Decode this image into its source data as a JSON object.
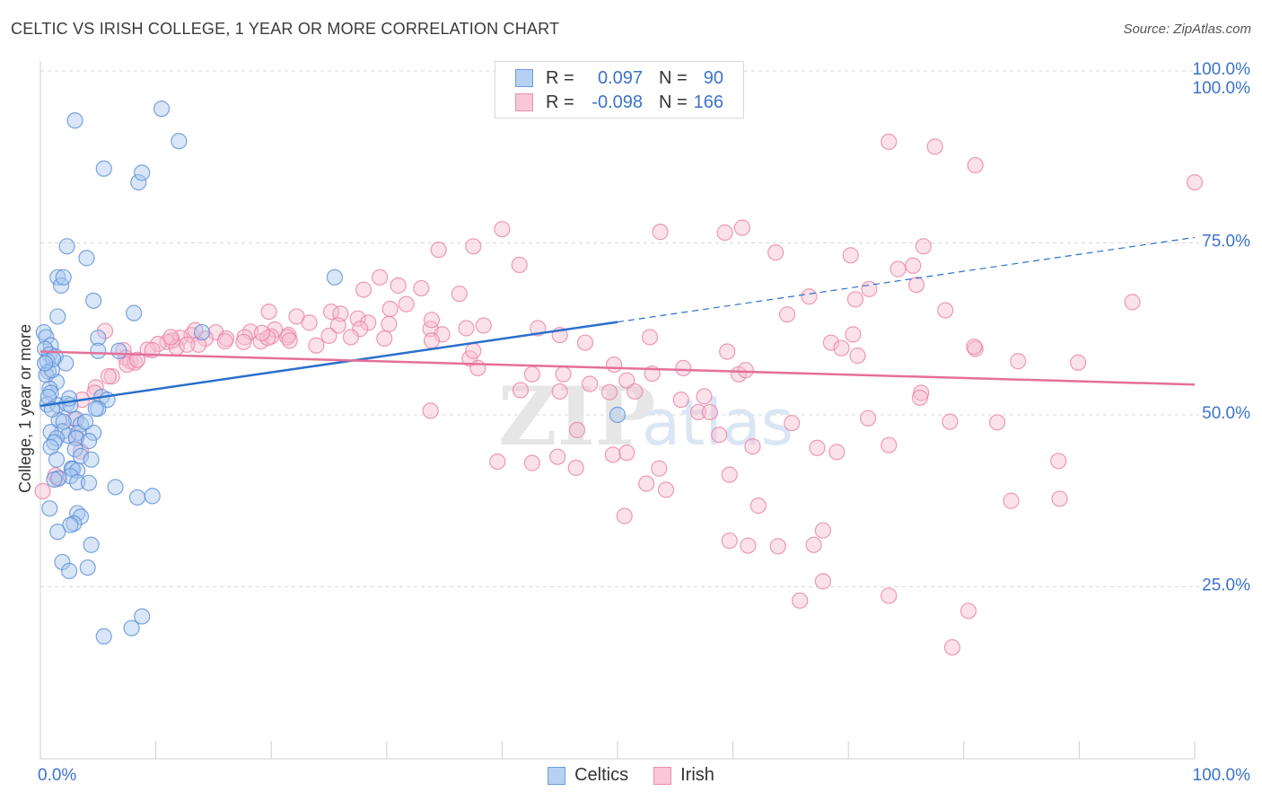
{
  "title": "CELTIC VS IRISH COLLEGE, 1 YEAR OR MORE CORRELATION CHART",
  "source": "Source: ZipAtlas.com",
  "watermark": "ZIPatlas",
  "colors": {
    "celtics_fill": "#a9c8f0",
    "celtics_stroke": "#5b8fd6",
    "celtics_line": "#2a6fcb",
    "irish_fill": "#f7bcd0",
    "irish_stroke": "#e882a6",
    "irish_line": "#e4709a",
    "axis_label": "#3b73c8",
    "grid": "#d9d9d9"
  },
  "legend": {
    "rows": [
      {
        "series": "Celtics",
        "r_label": "R =",
        "r_value": "0.097",
        "n_label": "N =",
        "n_value": "90"
      },
      {
        "series": "Irish",
        "r_label": "R =",
        "r_value": "-0.098",
        "n_label": "N =",
        "n_value": "166"
      }
    ]
  },
  "bottom_legend": [
    "Celtics",
    "Irish"
  ],
  "chart_data": {
    "type": "scatter",
    "title": "CELTIC VS IRISH COLLEGE, 1 YEAR OR MORE CORRELATION CHART",
    "xlabel": "",
    "ylabel": "College, 1 year or more",
    "xlim": [
      0,
      100
    ],
    "ylim": [
      0,
      100
    ],
    "x_tick_labels": [
      "0.0%",
      "100.0%"
    ],
    "y_ticks": [
      25,
      50,
      75,
      100
    ],
    "y_tick_labels": [
      "25.0%",
      "50.0%",
      "75.0%",
      "100.0%"
    ],
    "grid": true,
    "series": [
      {
        "name": "Celtics",
        "r": 0.097,
        "n": 90,
        "trend": {
          "x0": 0,
          "y0": 51.3,
          "x1": 50,
          "y1": 63.5,
          "dashed_to_x": 100,
          "dashed_to_y": 75.8
        },
        "points": [
          [
            3,
            92.8
          ],
          [
            10.5,
            94.5
          ],
          [
            12,
            89.8
          ],
          [
            5.5,
            85.8
          ],
          [
            8.5,
            83.8
          ],
          [
            8.8,
            85.2
          ],
          [
            2.3,
            74.5
          ],
          [
            4,
            72.8
          ],
          [
            1.5,
            70
          ],
          [
            1.8,
            68.8
          ],
          [
            2,
            70
          ],
          [
            4.6,
            66.6
          ],
          [
            8.1,
            64.8
          ],
          [
            1.5,
            64.3
          ],
          [
            0.3,
            62
          ],
          [
            0.5,
            61.3
          ],
          [
            0.9,
            60.1
          ],
          [
            5,
            61.2
          ],
          [
            14,
            62
          ],
          [
            0.4,
            59.6
          ],
          [
            0.8,
            58.8
          ],
          [
            1.3,
            58.5
          ],
          [
            0.6,
            57.8
          ],
          [
            2.2,
            57.5
          ],
          [
            0.7,
            56.3
          ],
          [
            0.5,
            55.8
          ],
          [
            5,
            59.3
          ],
          [
            6.8,
            59.3
          ],
          [
            1.4,
            54.8
          ],
          [
            0.8,
            53.8
          ],
          [
            0.9,
            53.2
          ],
          [
            5.3,
            52.6
          ],
          [
            5.8,
            52.2
          ],
          [
            0.6,
            51.5
          ],
          [
            1.5,
            51.4
          ],
          [
            2.3,
            51.6
          ],
          [
            2.6,
            51.4
          ],
          [
            5,
            50.9
          ],
          [
            4.8,
            50.9
          ],
          [
            50,
            50
          ],
          [
            3.1,
            49.4
          ],
          [
            1.6,
            49.2
          ],
          [
            2,
            49
          ],
          [
            3.5,
            48.6
          ],
          [
            1.9,
            47.6
          ],
          [
            0.9,
            47.5
          ],
          [
            2.4,
            47
          ],
          [
            3.3,
            47.4
          ],
          [
            4.6,
            47.4
          ],
          [
            1.4,
            46.6
          ],
          [
            3.1,
            46.6
          ],
          [
            4.2,
            46.2
          ],
          [
            1.2,
            46
          ],
          [
            0.9,
            45.3
          ],
          [
            3,
            45
          ],
          [
            3.5,
            44
          ],
          [
            1.4,
            43.5
          ],
          [
            4.4,
            43.5
          ],
          [
            2.7,
            42.2
          ],
          [
            2.8,
            42.1
          ],
          [
            3.2,
            41.9
          ],
          [
            2.6,
            41.1
          ],
          [
            1.6,
            40.8
          ],
          [
            1.2,
            40.6
          ],
          [
            3.2,
            40.2
          ],
          [
            4.2,
            40.1
          ],
          [
            6.5,
            39.5
          ],
          [
            8.4,
            38
          ],
          [
            9.7,
            38.2
          ],
          [
            0.8,
            36.4
          ],
          [
            3.2,
            35.7
          ],
          [
            3.5,
            35.2
          ],
          [
            2.9,
            34.2
          ],
          [
            2.6,
            34
          ],
          [
            1.5,
            33
          ],
          [
            4.4,
            31.1
          ],
          [
            1.9,
            28.6
          ],
          [
            4.1,
            27.8
          ],
          [
            2.5,
            27.3
          ],
          [
            8.8,
            20.7
          ],
          [
            7.9,
            19
          ],
          [
            5.5,
            17.8
          ],
          [
            1,
            56.5
          ],
          [
            1.1,
            58.1
          ],
          [
            0.4,
            57.5
          ],
          [
            2.5,
            52.4
          ],
          [
            3.9,
            49
          ],
          [
            0.7,
            52.6
          ],
          [
            1,
            50.8
          ],
          [
            25.5,
            70
          ]
        ]
      },
      {
        "name": "Irish",
        "r": -0.098,
        "n": 166,
        "trend": {
          "x0": 0,
          "y0": 59.2,
          "x1": 100,
          "y1": 54.4
        },
        "points": [
          [
            73.5,
            89.7
          ],
          [
            77.5,
            89
          ],
          [
            81,
            86.3
          ],
          [
            100,
            83.8
          ],
          [
            40,
            77
          ],
          [
            53.7,
            76.6
          ],
          [
            59.3,
            76.5
          ],
          [
            60.8,
            77.2
          ],
          [
            37.5,
            74.5
          ],
          [
            34.5,
            74
          ],
          [
            76.5,
            74.5
          ],
          [
            63.7,
            73.6
          ],
          [
            70.2,
            73.2
          ],
          [
            75.6,
            71.7
          ],
          [
            41.5,
            71.8
          ],
          [
            74.3,
            71.2
          ],
          [
            29.4,
            70
          ],
          [
            31,
            68.8
          ],
          [
            75.9,
            68.9
          ],
          [
            33,
            68.4
          ],
          [
            71.8,
            68.3
          ],
          [
            28,
            68.2
          ],
          [
            36.3,
            67.6
          ],
          [
            66.6,
            67.2
          ],
          [
            70.6,
            66.8
          ],
          [
            94.6,
            66.4
          ],
          [
            31.7,
            66.1
          ],
          [
            30.3,
            65.4
          ],
          [
            25.2,
            65
          ],
          [
            19.8,
            65
          ],
          [
            26,
            64.7
          ],
          [
            64.7,
            64.6
          ],
          [
            78.4,
            65.2
          ],
          [
            22.2,
            64.3
          ],
          [
            27.5,
            64
          ],
          [
            23.3,
            63.4
          ],
          [
            25.8,
            63
          ],
          [
            28.4,
            63.4
          ],
          [
            38.4,
            63
          ],
          [
            33.8,
            62.5
          ],
          [
            43.1,
            62.6
          ],
          [
            27.7,
            62.5
          ],
          [
            20.3,
            62.4
          ],
          [
            18.2,
            62.1
          ],
          [
            15.2,
            62
          ],
          [
            13.1,
            61.6
          ],
          [
            21.5,
            61.6
          ],
          [
            25,
            61.5
          ],
          [
            21.4,
            61.3
          ],
          [
            26.9,
            61.3
          ],
          [
            34.8,
            61.7
          ],
          [
            45,
            61.6
          ],
          [
            52.8,
            61.3
          ],
          [
            70.4,
            61.7
          ],
          [
            17.7,
            61.3
          ],
          [
            12.1,
            61.2
          ],
          [
            16.1,
            61.1
          ],
          [
            14.3,
            61.1
          ],
          [
            11.4,
            60.8
          ],
          [
            29.8,
            61.1
          ],
          [
            17.6,
            60.6
          ],
          [
            19.1,
            60.7
          ],
          [
            21.6,
            60.8
          ],
          [
            11,
            60.6
          ],
          [
            10.2,
            60.3
          ],
          [
            13.7,
            60.2
          ],
          [
            7.2,
            59.4
          ],
          [
            9.3,
            59.5
          ],
          [
            11.8,
            59.8
          ],
          [
            9.7,
            59.4
          ],
          [
            23.9,
            60.1
          ],
          [
            47.2,
            60.5
          ],
          [
            68.5,
            60.5
          ],
          [
            69.4,
            59.7
          ],
          [
            81,
            59.6
          ],
          [
            59.5,
            59.2
          ],
          [
            80.9,
            59.9
          ],
          [
            70.8,
            58.6
          ],
          [
            84.7,
            57.8
          ],
          [
            89.9,
            57.6
          ],
          [
            7.4,
            58.3
          ],
          [
            7.8,
            57.8
          ],
          [
            8.2,
            57.6
          ],
          [
            7.5,
            57.3
          ],
          [
            37.2,
            58.2
          ],
          [
            49.7,
            57.3
          ],
          [
            37.9,
            56.8
          ],
          [
            55.7,
            56.8
          ],
          [
            53,
            56
          ],
          [
            60.5,
            55.9
          ],
          [
            6.2,
            55.6
          ],
          [
            5.9,
            55.6
          ],
          [
            42.6,
            55.9
          ],
          [
            45.3,
            55.9
          ],
          [
            61.1,
            56.5
          ],
          [
            50.8,
            55
          ],
          [
            47.6,
            54.5
          ],
          [
            4.8,
            54
          ],
          [
            41.6,
            53.6
          ],
          [
            45,
            53.4
          ],
          [
            49.3,
            53.3
          ],
          [
            51.5,
            53.4
          ],
          [
            4.7,
            53.2
          ],
          [
            57.5,
            52.7
          ],
          [
            76.3,
            53.2
          ],
          [
            76.2,
            52.5
          ],
          [
            3.6,
            52.2
          ],
          [
            55.5,
            52.2
          ],
          [
            33.8,
            50.6
          ],
          [
            57,
            50.4
          ],
          [
            58,
            50.4
          ],
          [
            71.7,
            49.5
          ],
          [
            2.9,
            49.4
          ],
          [
            78.8,
            49
          ],
          [
            82.9,
            48.9
          ],
          [
            46.5,
            47.8
          ],
          [
            58.8,
            47.1
          ],
          [
            65.1,
            48.8
          ],
          [
            3.1,
            46.8
          ],
          [
            67.3,
            45.2
          ],
          [
            61.7,
            45.4
          ],
          [
            73.5,
            45.6
          ],
          [
            3.5,
            44.7
          ],
          [
            44.8,
            43.9
          ],
          [
            49.6,
            44.2
          ],
          [
            69,
            44.6
          ],
          [
            50.8,
            44.5
          ],
          [
            88.2,
            43.3
          ],
          [
            42.6,
            43
          ],
          [
            39.6,
            43.2
          ],
          [
            53.6,
            42.2
          ],
          [
            46.4,
            42.3
          ],
          [
            59.7,
            41.3
          ],
          [
            1.3,
            41.2
          ],
          [
            52.5,
            40
          ],
          [
            1.5,
            40.7
          ],
          [
            54.2,
            39.1
          ],
          [
            0.2,
            38.9
          ],
          [
            88.3,
            37.8
          ],
          [
            84.1,
            37.5
          ],
          [
            62.2,
            36.8
          ],
          [
            50.6,
            35.3
          ],
          [
            67.8,
            33.2
          ],
          [
            67,
            31.1
          ],
          [
            59.7,
            31.7
          ],
          [
            61.3,
            31
          ],
          [
            63.9,
            30.9
          ],
          [
            67.8,
            25.8
          ],
          [
            73.5,
            23.7
          ],
          [
            65.8,
            23
          ],
          [
            80.4,
            21.5
          ],
          [
            79,
            16.2
          ],
          [
            13.4,
            62.3
          ],
          [
            5.6,
            62.2
          ],
          [
            8.4,
            58
          ],
          [
            11.3,
            61.3
          ],
          [
            20,
            61.4
          ],
          [
            30.2,
            63.2
          ],
          [
            36.9,
            62.6
          ],
          [
            33.9,
            60.8
          ],
          [
            16,
            60.7
          ],
          [
            12.7,
            60.2
          ],
          [
            33.9,
            63.8
          ],
          [
            37.5,
            59.3
          ],
          [
            19.7,
            61.2
          ],
          [
            19.2,
            61.9
          ]
        ]
      }
    ]
  }
}
